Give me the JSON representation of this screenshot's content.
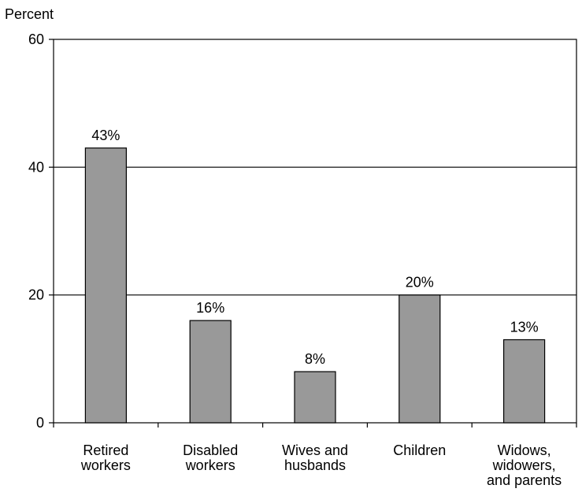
{
  "chart_data": {
    "type": "bar",
    "title": "",
    "ylabel": "Percent",
    "xlabel": "",
    "ylim": [
      0,
      60
    ],
    "yticks": [
      0,
      20,
      40,
      60
    ],
    "grid": "horizontal at 20 and 40",
    "categories": [
      [
        "Retired",
        "workers"
      ],
      [
        "Disabled",
        "workers"
      ],
      [
        "Wives and",
        "husbands"
      ],
      [
        "Children"
      ],
      [
        "Widows,",
        "widowers,",
        "and parents"
      ]
    ],
    "values": [
      43,
      16,
      8,
      20,
      13
    ],
    "data_labels": [
      "43%",
      "16%",
      "8%",
      "20%",
      "13%"
    ],
    "colors": {
      "bar_fill": "#999999",
      "bar_stroke": "#000000",
      "axis": "#000000",
      "background": "#ffffff"
    }
  }
}
